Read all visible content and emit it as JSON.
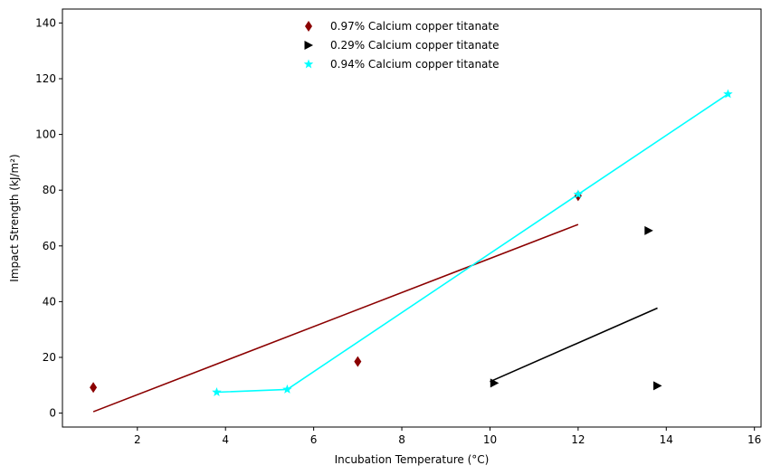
{
  "chart_data": {
    "type": "scatter",
    "title": "",
    "xlabel": "Incubation Temperature (°C)",
    "ylabel": "Impact Strength (kJ/m²)",
    "xlim": [
      0.3,
      16.15
    ],
    "ylim": [
      -5,
      145
    ],
    "xticks": [
      2,
      4,
      6,
      8,
      10,
      12,
      14,
      16
    ],
    "yticks": [
      0,
      20,
      40,
      60,
      80,
      100,
      120,
      140
    ],
    "grid": false,
    "legend_position": "top-center",
    "series": [
      {
        "name": "0.97% Calcium copper titanate",
        "marker": "thin_diamond",
        "color": "#8b0000",
        "points": [
          [
            1.0,
            9.2
          ],
          [
            7.0,
            18.5
          ],
          [
            12.0,
            78.0
          ]
        ],
        "line": [
          [
            1.0,
            0.5
          ],
          [
            12.0,
            67.7
          ]
        ]
      },
      {
        "name": "0.29% Calcium copper titanate",
        "marker": "triangle-right",
        "color": "#000000",
        "points": [
          [
            10.1,
            10.8
          ],
          [
            13.6,
            65.5
          ],
          [
            13.8,
            9.8
          ]
        ],
        "line": [
          [
            10.0,
            11.3
          ],
          [
            13.8,
            37.7
          ]
        ]
      },
      {
        "name": "0.94% Calcium copper titanate",
        "marker": "star",
        "color": "#00ffff",
        "points": [
          [
            3.8,
            7.5
          ],
          [
            5.4,
            8.5
          ],
          [
            12.0,
            78.5
          ],
          [
            15.4,
            114.5
          ]
        ],
        "line": [
          [
            3.8,
            7.5
          ],
          [
            5.4,
            8.5
          ],
          [
            12.0,
            78.5
          ],
          [
            15.4,
            114.5
          ]
        ]
      }
    ]
  }
}
